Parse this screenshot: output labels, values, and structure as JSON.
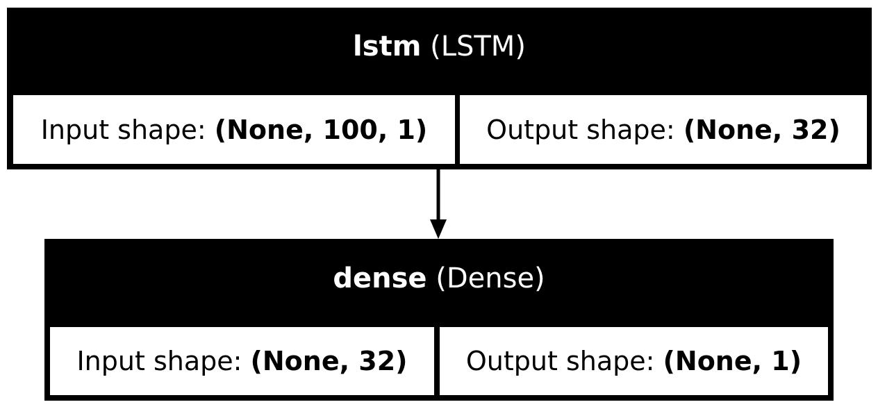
{
  "layers": [
    {
      "name": "lstm",
      "type": "(LSTM)",
      "input_label": "Input shape: ",
      "input_shape": "(None, 100, 1)",
      "output_label": "Output shape: ",
      "output_shape": "(None, 32)"
    },
    {
      "name": "dense",
      "type": "(Dense)",
      "input_label": "Input shape: ",
      "input_shape": "(None, 32)",
      "output_label": "Output shape: ",
      "output_shape": "(None, 1)"
    }
  ],
  "colors": {
    "header_bg": "#000000",
    "header_text": "#ffffff",
    "cell_bg": "#ffffff",
    "edge": "#000000"
  }
}
